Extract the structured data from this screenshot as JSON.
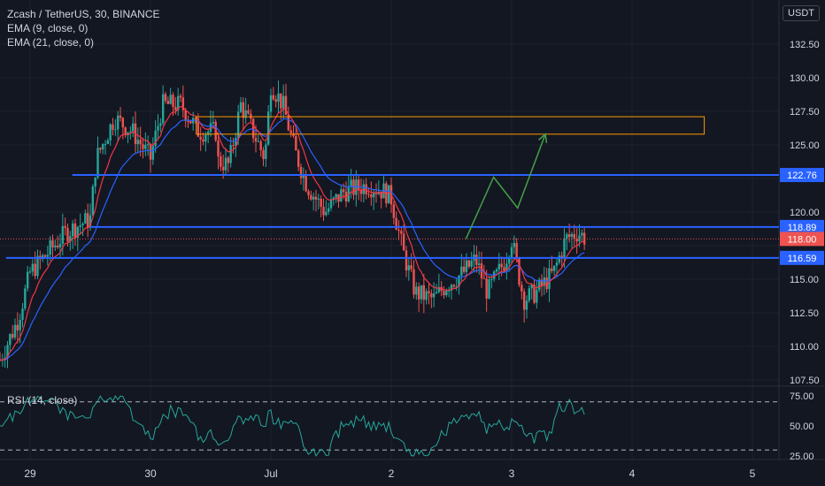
{
  "header": {
    "title": "Zcash / TetherUS, 30, BINANCE",
    "ema9": "EMA (9, close, 0)",
    "ema21": "EMA (21, close, 0)",
    "currency": "USDT"
  },
  "rsi": {
    "label": "RSI (14, close)",
    "ticks": [
      "75.00",
      "50.00",
      "25.00"
    ]
  },
  "colors": {
    "bg": "#131722",
    "up": "#26a69a",
    "down": "#ef5350",
    "ema9": "#f23645",
    "ema21": "#2962ff",
    "level": "#2962ff",
    "zone": "#ff9800",
    "arrow": "#43a047",
    "rsi": "#26a69a",
    "grid": "#1e222d",
    "axisText": "#d1d4dc"
  },
  "chart_data": {
    "type": "candlestick",
    "y_ticks": [
      "132.50",
      "130.00",
      "127.50",
      "125.00",
      "122.50",
      "120.00",
      "117.50",
      "115.00",
      "112.50",
      "110.00",
      "107.50"
    ],
    "y_tick_values": [
      132.5,
      130.0,
      127.5,
      125.0,
      122.5,
      120.0,
      117.5,
      115.0,
      112.5,
      110.0,
      107.5
    ],
    "x_ticks": [
      "29",
      "30",
      "Jul",
      "2",
      "3",
      "4",
      "5"
    ],
    "x_tick_values": [
      0.0,
      1.0,
      2.0,
      3.0,
      4.0,
      5.0,
      6.0
    ],
    "levels": [
      {
        "price": 122.76,
        "label": "122.76",
        "x_start": 0.35
      },
      {
        "price": 118.89,
        "label": "118.89",
        "x_start": 0.5
      },
      {
        "price": 116.59,
        "label": "116.59",
        "x_start": -0.2
      }
    ],
    "current_price": {
      "price": 118.0,
      "label": "118.00"
    },
    "zone": {
      "x_start": 1.38,
      "x_end": 5.6,
      "y_low": 125.8,
      "y_high": 127.1
    },
    "arrow": [
      [
        3.62,
        118.0
      ],
      [
        3.85,
        122.6
      ],
      [
        4.05,
        120.3
      ],
      [
        4.28,
        125.8
      ]
    ],
    "candles_sample_note": "",
    "rsi_levels": [
      70,
      30
    ]
  }
}
